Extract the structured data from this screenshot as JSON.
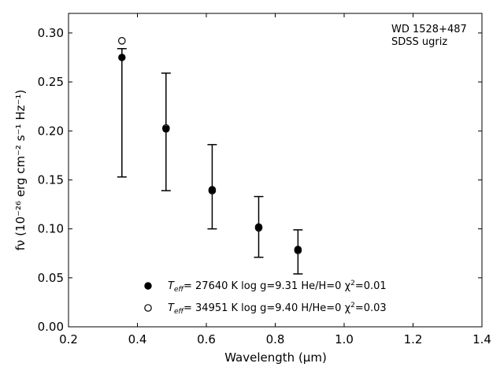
{
  "chart_data": {
    "type": "scatter",
    "annotation": [
      "WD 1528+487",
      "SDSS ugriz"
    ],
    "xlabel": "Wavelength (μm)",
    "ylabel": "fν (10⁻²⁶ erg cm⁻² s⁻¹ Hz⁻¹)",
    "xlim": [
      0.2,
      1.4
    ],
    "ylim": [
      0.0,
      0.32
    ],
    "xticks": [
      0.2,
      0.4,
      0.6,
      0.8,
      1.0,
      1.2,
      1.4
    ],
    "xtick_labels": [
      "0.2",
      "0.4",
      "0.6",
      "0.8",
      "1.0",
      "1.2",
      "1.4"
    ],
    "yticks": [
      0.0,
      0.05,
      0.1,
      0.15,
      0.2,
      0.25,
      0.3
    ],
    "ytick_labels": [
      "0.00",
      "0.05",
      "0.10",
      "0.15",
      "0.20",
      "0.25",
      "0.30"
    ],
    "grid": false,
    "legend_position": "lower-center",
    "observed": {
      "x": [
        0.355,
        0.483,
        0.617,
        0.752,
        0.866
      ],
      "y": [
        0.275,
        0.202,
        0.14,
        0.102,
        0.079
      ],
      "yerr_low": [
        0.153,
        0.139,
        0.1,
        0.071,
        0.054
      ],
      "yerr_high": [
        0.284,
        0.259,
        0.186,
        0.133,
        0.099
      ]
    },
    "series": [
      {
        "name": "T_eff= 27640 K  log g=9.31  He/H=0  χ²=0.01",
        "marker": "filled-circle",
        "x": [
          0.355,
          0.483,
          0.617,
          0.752,
          0.866
        ],
        "y": [
          0.275,
          0.202,
          0.14,
          0.102,
          0.079
        ]
      },
      {
        "name": "T_eff= 34951 K  log g=9.40  H/He=0  χ²=0.03",
        "marker": "open-circle",
        "x": [
          0.355,
          0.483,
          0.617,
          0.752,
          0.866
        ],
        "y": [
          0.292,
          0.203,
          0.139,
          0.101,
          0.078
        ]
      }
    ],
    "legend": [
      {
        "teff_label": "T",
        "teff_sub": "eff",
        "text": "= 27640 K  log g=9.31  He/H=0  χ",
        "chi_sup": "2",
        "chi_val": "=0.01"
      },
      {
        "teff_label": "T",
        "teff_sub": "eff",
        "text": "= 34951 K  log g=9.40  H/He=0  χ",
        "chi_sup": "2",
        "chi_val": "=0.03"
      }
    ],
    "colors": {
      "marker": "#000000",
      "axes": "#000000",
      "background": "#ffffff"
    }
  }
}
